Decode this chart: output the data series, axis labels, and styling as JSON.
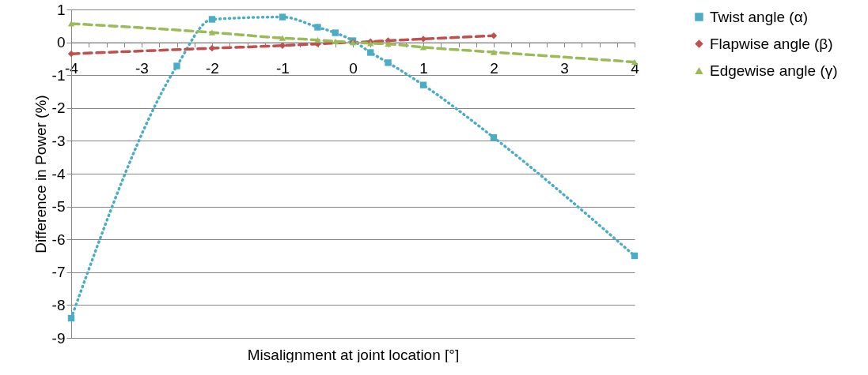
{
  "chart_data": {
    "type": "line",
    "xlabel": "Misalignment at joint location [°]",
    "ylabel": "Difference in Power (%)",
    "xlim": [
      -4,
      4
    ],
    "ylim": [
      -9,
      1
    ],
    "xticks": [
      -4,
      {
        "value": -3.75,
        "label": null
      },
      {
        "value": -3.5,
        "label": null
      },
      {
        "value": -3.25,
        "label": null
      },
      -3,
      {
        "value": -2.75,
        "label": null
      },
      {
        "value": -2.5,
        "label": null
      },
      {
        "value": -2.25,
        "label": null
      },
      -2,
      {
        "value": -1.75,
        "label": null
      },
      {
        "value": -1.5,
        "label": null
      },
      {
        "value": -1.25,
        "label": null
      },
      -1,
      {
        "value": -0.75,
        "label": null
      },
      {
        "value": -0.5,
        "label": null
      },
      {
        "value": -0.25,
        "label": null
      },
      0,
      {
        "value": 0.25,
        "label": null
      },
      {
        "value": 0.5,
        "label": null
      },
      {
        "value": 0.75,
        "label": null
      },
      1,
      {
        "value": 1.25,
        "label": null
      },
      {
        "value": 1.5,
        "label": null
      },
      {
        "value": 1.75,
        "label": null
      },
      2,
      {
        "value": 2.25,
        "label": null
      },
      {
        "value": 2.5,
        "label": null
      },
      {
        "value": 2.75,
        "label": null
      },
      3,
      {
        "value": 3.25,
        "label": null
      },
      {
        "value": 3.5,
        "label": null
      },
      {
        "value": 3.75,
        "label": null
      },
      4
    ],
    "yticks": [
      -9,
      -8,
      -7,
      -6,
      -5,
      -4,
      -3,
      -2,
      -1,
      0,
      1
    ],
    "grid": "y",
    "legend": "right",
    "series": [
      {
        "name": "Twist angle (α)",
        "color": "#4bacc6",
        "marker": "square",
        "line_style": "dotted",
        "x": [
          -4,
          -2.5,
          -2,
          -1,
          -0.5,
          -0.25,
          0,
          0.25,
          0.5,
          1,
          2,
          4
        ],
        "values": [
          -8.4,
          -0.72,
          0.7,
          0.77,
          0.46,
          0.29,
          0.05,
          -0.31,
          -0.62,
          -1.3,
          -2.9,
          -6.5
        ]
      },
      {
        "name": "Flapwise angle (β)",
        "color": "#c0504d",
        "marker": "diamond",
        "line_style": "dashed",
        "x": [
          -4,
          -2,
          -1,
          -0.5,
          0,
          0.25,
          0.5,
          1,
          2
        ],
        "values": [
          -0.35,
          -0.18,
          -0.1,
          -0.05,
          0,
          0.02,
          0.05,
          0.1,
          0.2
        ]
      },
      {
        "name": "Edgewise angle (γ)",
        "color": "#9bbb59",
        "marker": "triangle",
        "line_style": "dashed",
        "x": [
          -4,
          -2,
          -1,
          -0.5,
          -0.25,
          0,
          0.25,
          0.5,
          1,
          2,
          4
        ],
        "values": [
          0.57,
          0.3,
          0.13,
          0.07,
          0.03,
          0,
          -0.03,
          -0.05,
          -0.15,
          -0.3,
          -0.6
        ]
      }
    ]
  }
}
